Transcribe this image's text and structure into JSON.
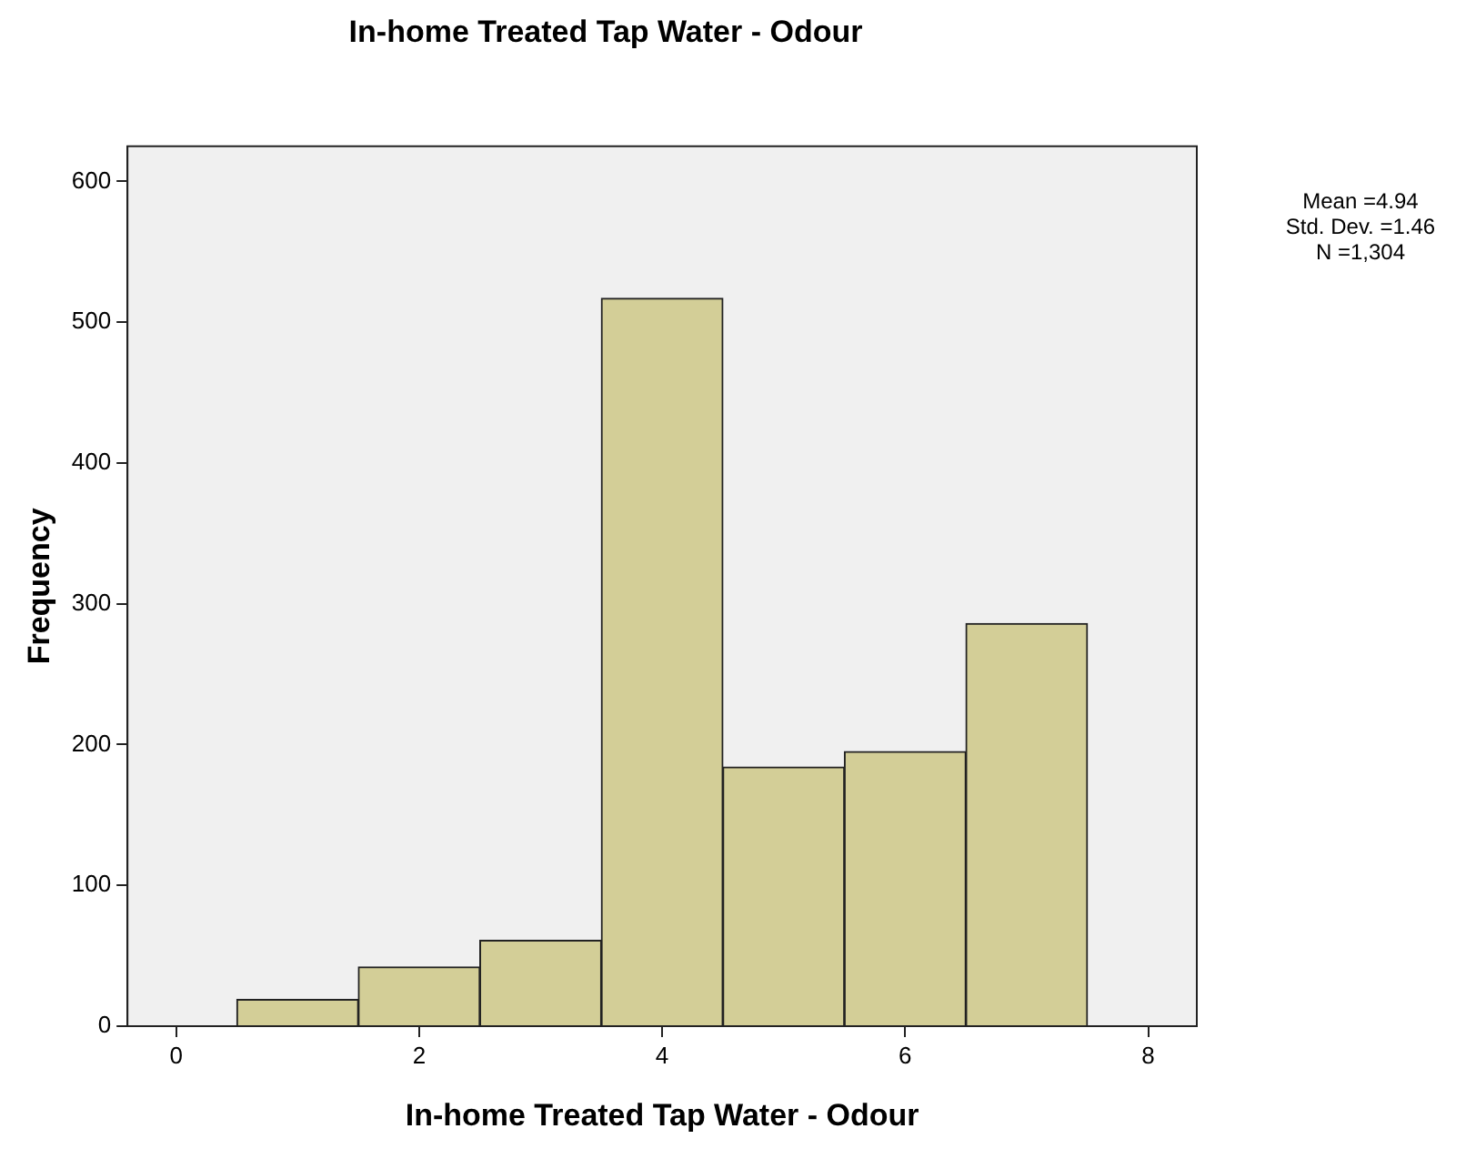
{
  "chart_data": {
    "type": "histogram",
    "title": "In-home Treated Tap Water - Odour",
    "xlabel": "In-home Treated Tap Water - Odour",
    "ylabel": "Frequency",
    "bins": [
      0.5,
      1.5,
      2.5,
      3.5,
      4.5,
      5.5,
      6.5,
      7.5
    ],
    "values": [
      19,
      42,
      61,
      517,
      184,
      195,
      286
    ],
    "color": "#d3ce97",
    "xlim": [
      -0.4,
      8.4
    ],
    "xticks": [
      0,
      2,
      4,
      6,
      8
    ],
    "ylim": [
      0,
      625
    ],
    "yticks": [
      0,
      100,
      200,
      300,
      400,
      500,
      600
    ],
    "grid": false,
    "legend": false,
    "annotations": [
      "Mean =4.94",
      "Std. Dev. =1.46",
      "N =1,304"
    ]
  }
}
